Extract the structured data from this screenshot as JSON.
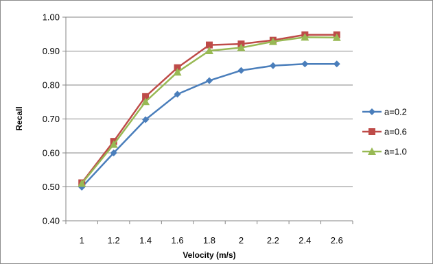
{
  "chart_data": {
    "type": "line",
    "xlabel": "Velocity (m/s)",
    "ylabel": "Recall",
    "x": [
      "1",
      "1.2",
      "1.4",
      "1.6",
      "1.8",
      "2",
      "2.2",
      "2.4",
      "2.6"
    ],
    "yticks": [
      "0.40",
      "0.50",
      "0.60",
      "0.70",
      "0.80",
      "0.90",
      "1.00"
    ],
    "ylim": [
      0.4,
      1.0
    ],
    "grid": "horizontal",
    "legend": "right",
    "series": [
      {
        "name": "a=0.2",
        "color": "#4a7ebb",
        "marker": "diamond",
        "values": [
          0.499,
          0.6,
          0.698,
          0.773,
          0.813,
          0.843,
          0.857,
          0.862,
          0.862
        ]
      },
      {
        "name": "a=0.6",
        "color": "#be4b48",
        "marker": "square",
        "values": [
          0.512,
          0.634,
          0.766,
          0.851,
          0.918,
          0.921,
          0.932,
          0.948,
          0.948
        ]
      },
      {
        "name": "a=1.0",
        "color": "#98b954",
        "marker": "triangle",
        "values": [
          0.51,
          0.625,
          0.751,
          0.838,
          0.901,
          0.91,
          0.928,
          0.941,
          0.94
        ]
      }
    ]
  }
}
